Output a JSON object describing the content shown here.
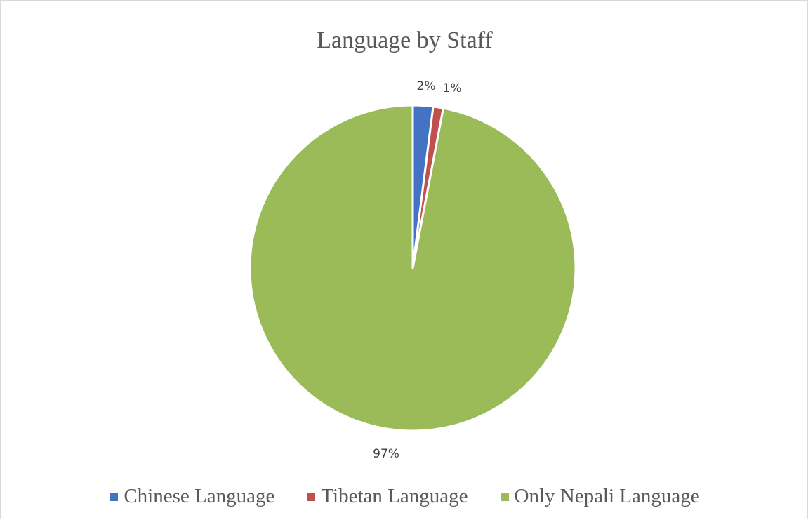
{
  "chart_data": {
    "type": "pie",
    "title": "Language by Staff",
    "categories": [
      "Chinese Language",
      "Tibetan Language",
      "Only Nepali Language"
    ],
    "values": [
      2,
      1,
      97
    ],
    "labels": [
      "2%",
      "1%",
      "97%"
    ],
    "colors": [
      "#4472C4",
      "#C0504D",
      "#9BBB59"
    ],
    "legend_position": "bottom"
  }
}
